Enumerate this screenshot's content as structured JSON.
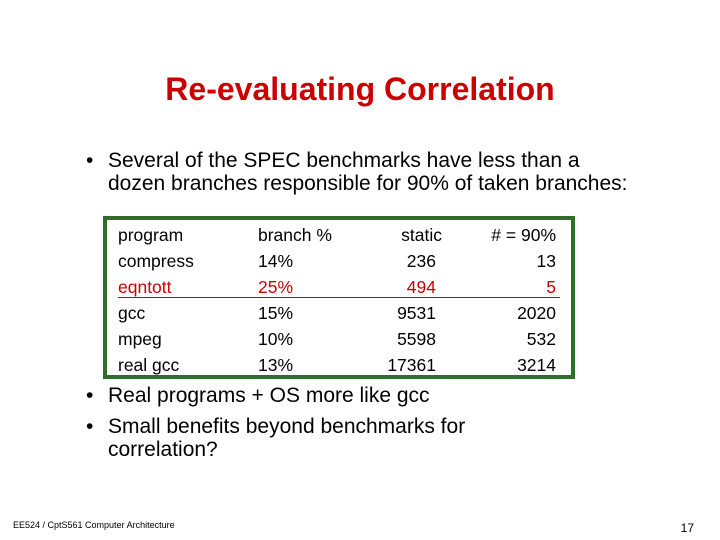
{
  "title": "Re-evaluating Correlation",
  "bullets": {
    "b1": "Several of the SPEC benchmarks have less than a dozen branches responsible for 90% of taken branches:",
    "b2": "Real programs + OS more like gcc",
    "b3": "Small benefits beyond benchmarks for correlation?"
  },
  "bullet_char": "•",
  "table": {
    "headers": [
      "program",
      "branch %",
      "static",
      "# = 90%"
    ],
    "rows": [
      [
        "compress",
        "14%",
        "236",
        "13"
      ],
      [
        "eqntott",
        "25%",
        "494",
        "5"
      ],
      [
        "gcc",
        "15%",
        "9531",
        "2020"
      ],
      [
        "mpeg",
        "10%",
        "5598",
        "532"
      ],
      [
        "real gcc",
        "13%",
        "17361",
        "3214"
      ]
    ],
    "highlight_row_index": 1
  },
  "colors": {
    "title": "#cc0000",
    "border": "#2f6e2a",
    "highlight": "#cc0000"
  },
  "footer": {
    "course": "EE524 / CptS561 Computer Architecture",
    "page": "17"
  }
}
